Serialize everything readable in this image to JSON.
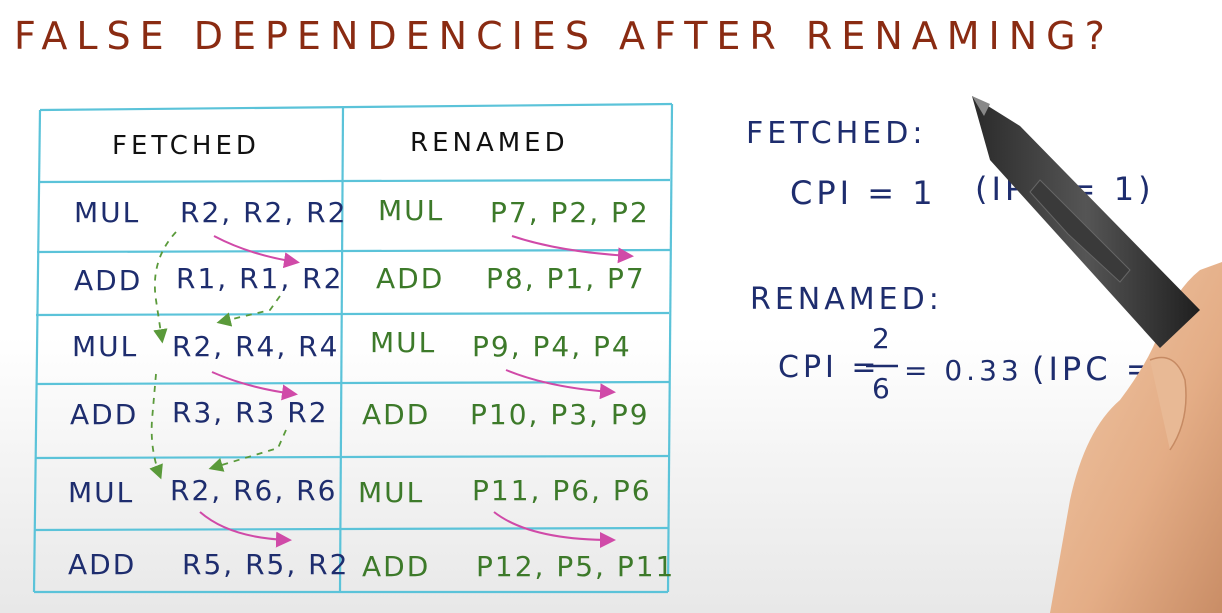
{
  "title": "FALSE DEPENDENCIES AFTER RENAMING?",
  "table": {
    "headers": {
      "fetched": "FETCHED",
      "renamed": "RENAMED"
    },
    "rows": [
      {
        "f_op": "MUL",
        "f_regs": "R2, R2, R2",
        "r_op": "MUL",
        "r_regs": "P7, P2, P2"
      },
      {
        "f_op": "ADD",
        "f_regs": "R1, R1, R2",
        "r_op": "ADD",
        "r_regs": "P8, P1, P7"
      },
      {
        "f_op": "MUL",
        "f_regs": "R2, R4, R4",
        "r_op": "MUL",
        "r_regs": "P9, P4, P4"
      },
      {
        "f_op": "ADD",
        "f_regs": "R3, R3 R2",
        "r_op": "ADD",
        "r_regs": "P10, P3, P9"
      },
      {
        "f_op": "MUL",
        "f_regs": "R2, R6, R6",
        "r_op": "MUL",
        "r_regs": "P11, P6, P6"
      },
      {
        "f_op": "ADD",
        "f_regs": "R5, R5, R2",
        "r_op": "ADD",
        "r_regs": "P12, P5, P11"
      }
    ]
  },
  "notes": {
    "fetched_label": "FETCHED:",
    "fetched_cpi": "CPI = 1",
    "fetched_ipc": "(IPC = 1)",
    "renamed_label": "RENAMED:",
    "renamed_cpi_prefix": "CPI =",
    "renamed_cpi_num": "2",
    "renamed_cpi_den": "6",
    "renamed_cpi_value": "= 0.33",
    "renamed_ipc": "(IPC = 3)"
  },
  "colors": {
    "title": "#8a2b12",
    "grid": "#5bc3d9",
    "fetched_text": "#1e2d6e",
    "renamed_text": "#3d7a2a",
    "raw_arrow": "#d04aa8",
    "war_arrow": "#5a9a3a"
  },
  "icons": {
    "pen": "stylus-pen-icon",
    "hand": "hand-image"
  }
}
